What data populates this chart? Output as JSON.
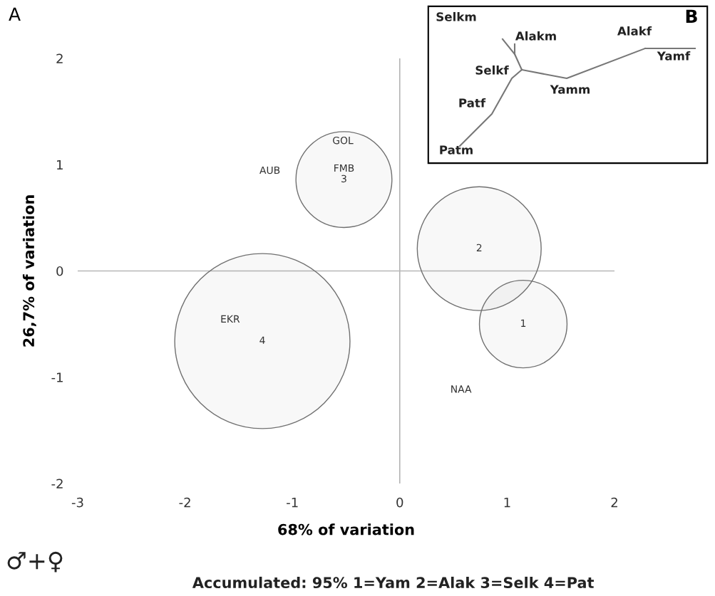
{
  "chart_data": [
    {
      "type": "bubble",
      "title": "A",
      "xlabel": "68% of variation",
      "ylabel": "26,7% of variation",
      "xlim": [
        -3,
        2
      ],
      "ylim": [
        -2,
        2
      ],
      "xticks": [
        -3,
        -2,
        -1,
        0,
        1,
        2
      ],
      "yticks": [
        -2,
        -1,
        0,
        1,
        2
      ],
      "grid": false,
      "legend": false,
      "ref_lines": [
        {
          "axis": "x",
          "value": 0,
          "color": "#a8a8a8"
        },
        {
          "axis": "y",
          "value": 0,
          "color": "#b8b8b8"
        }
      ],
      "series": [
        {
          "name": "1",
          "color": "#707070",
          "x": [
            1.15
          ],
          "values": [
            -0.5
          ],
          "sizes": [
            0.25
          ]
        },
        {
          "name": "2",
          "color": "#707070",
          "x": [
            0.74
          ],
          "values": [
            0.21
          ],
          "sizes": [
            0.5
          ]
        },
        {
          "name": "3",
          "color": "#707070",
          "x": [
            -0.52
          ],
          "values": [
            0.86
          ],
          "sizes": [
            0.3
          ]
        },
        {
          "name": "4",
          "color": "#707070",
          "x": [
            -1.28
          ],
          "values": [
            -0.66
          ],
          "sizes": [
            1
          ]
        }
      ],
      "annotations": [
        "AUB",
        "GOL",
        "FMB",
        "EKR",
        "NAA",
        "♂+♀",
        "Accumulated: 95% 1=Yam 2=Alak 3=Selk 4=Pat"
      ]
    },
    {
      "type": "other",
      "title": "B",
      "annotations": [
        "Selkm",
        "Alakm",
        "Selkf",
        "Yamm",
        "Patf",
        "Patm",
        "Alakf",
        "Yamf"
      ]
    }
  ]
}
